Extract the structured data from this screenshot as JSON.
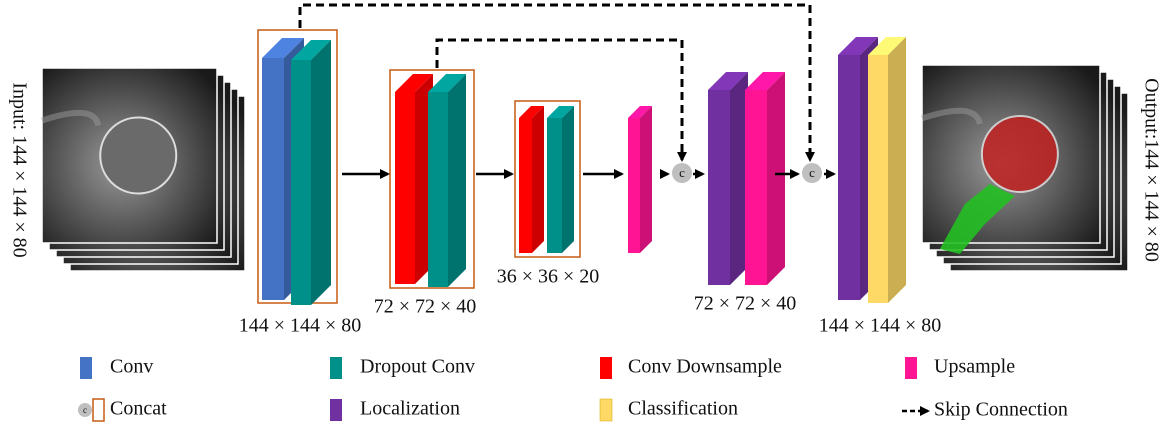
{
  "input_label": "Input: 144 × 144 × 80",
  "output_label": "Output:144 × 144 × 80",
  "dimension_labels": [
    "144 × 144 × 80",
    "72 × 72 × 40",
    "36 × 36 × 20",
    "72 × 72 × 40",
    "144 × 144 × 80"
  ],
  "concat_symbol": "c",
  "legend": [
    {
      "label": "Conv"
    },
    {
      "label": "Dropout Conv"
    },
    {
      "label": "Conv Downsample"
    },
    {
      "label": "Upsample"
    },
    {
      "label": "Concat"
    },
    {
      "label": "Localization"
    },
    {
      "label": "Classification"
    },
    {
      "label": "Skip Connection"
    }
  ]
}
